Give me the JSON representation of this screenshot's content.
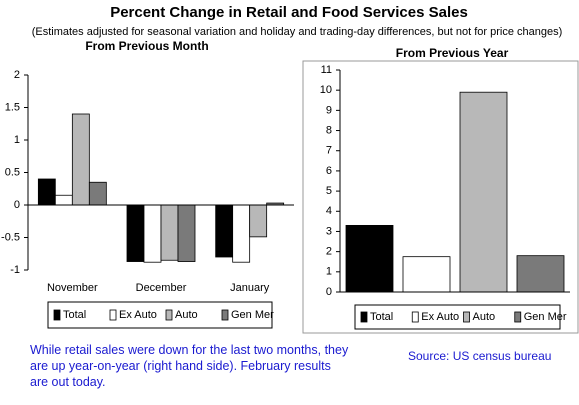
{
  "title": "Percent Change in Retail and Food Services Sales",
  "subtitle": "(Estimates adjusted for seasonal variation and holiday and trading-day differences, but not for price changes)",
  "caption": "While retail sales were down for the last two months, they are up year-on-year (right hand side). February results are out today.",
  "source": "Source: US census bureau",
  "chart_data": [
    {
      "type": "bar",
      "title": "From Previous Month",
      "categories": [
        "November",
        "December",
        "January"
      ],
      "series": [
        {
          "name": "Total",
          "color": "#000000",
          "values": [
            0.4,
            -0.87,
            -0.8
          ]
        },
        {
          "name": "Ex Auto",
          "color": "#ffffff",
          "values": [
            0.15,
            -0.88,
            -0.88
          ]
        },
        {
          "name": "Auto",
          "color": "#b8b8b8",
          "values": [
            1.4,
            -0.85,
            -0.49
          ]
        },
        {
          "name": "Gen Mer",
          "color": "#7a7a7a",
          "values": [
            0.35,
            -0.87,
            0.03
          ]
        }
      ],
      "ylim": [
        -1,
        2
      ],
      "yticks": [
        -1,
        -0.5,
        0,
        0.5,
        1,
        1.5,
        2
      ]
    },
    {
      "type": "bar",
      "title": "From Previous Year",
      "categories": [
        null
      ],
      "series": [
        {
          "name": "Total",
          "color": "#000000",
          "values": [
            3.3
          ]
        },
        {
          "name": "Ex Auto",
          "color": "#ffffff",
          "values": [
            1.75
          ]
        },
        {
          "name": "Auto",
          "color": "#b8b8b8",
          "values": [
            9.9
          ]
        },
        {
          "name": "Gen Mer",
          "color": "#7a7a7a",
          "values": [
            1.8
          ]
        }
      ],
      "ylim": [
        0,
        11
      ],
      "yticks": [
        0,
        1,
        2,
        3,
        4,
        5,
        6,
        7,
        8,
        9,
        10,
        11
      ]
    }
  ]
}
